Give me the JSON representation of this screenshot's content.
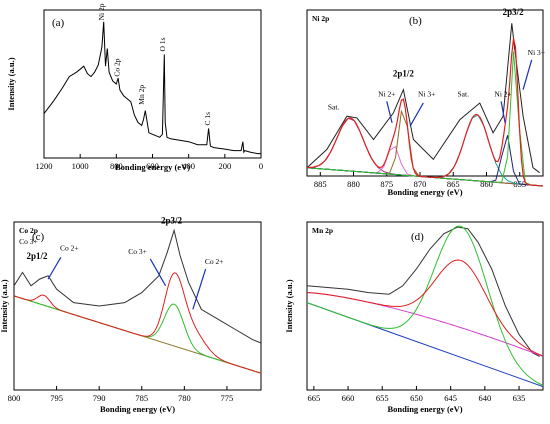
{
  "chart_data": [
    {
      "panel": "(a)",
      "type": "line",
      "xlabel": "Bonding energy (eV)",
      "ylabel": "Intensity (a.u.)",
      "xlim": [
        1200,
        0
      ],
      "xticks": [
        1200,
        1000,
        800,
        600,
        400,
        200,
        0
      ],
      "series": [
        {
          "x": [
            1200,
            1150,
            1100,
            1060,
            1020,
            1000,
            980,
            960,
            940,
            920,
            900,
            880,
            870,
            860,
            855,
            850,
            840,
            820,
            800,
            790,
            780,
            760,
            740,
            720,
            700,
            680,
            660,
            650,
            640,
            620,
            600,
            560,
            545,
            535,
            530,
            520,
            500,
            450,
            400,
            350,
            300,
            290,
            285,
            280,
            260,
            200,
            150,
            110,
            100,
            95,
            90,
            60,
            20,
            0
          ],
          "y": [
            0.3,
            0.38,
            0.47,
            0.55,
            0.58,
            0.6,
            0.62,
            0.57,
            0.55,
            0.58,
            0.63,
            0.75,
            0.92,
            0.62,
            0.68,
            0.74,
            0.58,
            0.52,
            0.5,
            0.54,
            0.46,
            0.42,
            0.4,
            0.38,
            0.29,
            0.24,
            0.22,
            0.26,
            0.32,
            0.17,
            0.16,
            0.14,
            0.16,
            0.7,
            0.24,
            0.14,
            0.13,
            0.12,
            0.11,
            0.09,
            0.09,
            0.2,
            0.14,
            0.08,
            0.07,
            0.06,
            0.05,
            0.05,
            0.11,
            0.04,
            0.05,
            0.04,
            0.03,
            0.03
          ]
        }
      ],
      "annotations": [
        "Ni 2p",
        "Co 2p",
        "Mn 2p",
        "O 1s",
        "C 1s"
      ]
    },
    {
      "panel": "(b)",
      "type": "line",
      "corner_label": "Ni 2p",
      "xlabel": "Bonding energy (eV)",
      "ylabel": "",
      "xlim": [
        887,
        851.5
      ],
      "xticks": [
        885,
        880,
        875,
        870,
        865,
        860,
        855
      ],
      "series": [
        {
          "x": [
            887,
            884,
            881,
            879.5,
            877,
            874,
            872.5,
            871,
            868,
            864,
            861,
            859,
            857.5,
            856.2,
            855.8,
            854.5,
            853,
            852
          ],
          "y": [
            0.05,
            0.16,
            0.36,
            0.35,
            0.22,
            0.38,
            0.52,
            0.22,
            0.1,
            0.34,
            0.44,
            0.26,
            0.36,
            0.92,
            0.78,
            0.36,
            0.05,
            0.02
          ]
        },
        {
          "x": [
            887,
            851.5
          ],
          "y": [
            0.05,
            -0.06
          ]
        }
      ],
      "annotations": [
        "Sat.",
        "Ni 2+",
        "2p1/2",
        "Ni 3+",
        "Sat.",
        "Ni 2+",
        "2p3/2",
        "Ni 3+"
      ]
    },
    {
      "panel": "(c)",
      "type": "line",
      "corner_label": "Co 2p",
      "xlabel": "Bonding energy (eV)",
      "ylabel": "Intensity (a.u.)",
      "xlim": [
        800,
        771
      ],
      "xticks": [
        800,
        795,
        790,
        785,
        780,
        775
      ],
      "series": [
        {
          "x": [
            800,
            799,
            798,
            797,
            796,
            795,
            793,
            790,
            787,
            785,
            783,
            782,
            781.2,
            780.5,
            779.5,
            778,
            776,
            774,
            772,
            771
          ],
          "y": [
            0.62,
            0.7,
            0.62,
            0.66,
            0.68,
            0.6,
            0.52,
            0.5,
            0.52,
            0.58,
            0.68,
            0.82,
            0.95,
            0.8,
            0.64,
            0.48,
            0.42,
            0.36,
            0.3,
            0.28
          ]
        },
        {
          "x": [
            800,
            771
          ],
          "y": [
            0.56,
            0.1
          ]
        }
      ],
      "annotations": [
        "Co 3+",
        "2p1/2",
        "Co 2+",
        "2p3/2",
        "Co 3+",
        "Co 2+"
      ]
    },
    {
      "panel": "(d)",
      "type": "line",
      "corner_label": "Mn 2p",
      "xlabel": "Bonding energy (eV)",
      "ylabel": "Intensity (a.u.)",
      "xlim": [
        666,
        631.5
      ],
      "xticks": [
        665,
        660,
        655,
        650,
        645,
        640,
        635
      ],
      "series": [
        {
          "x": [
            666,
            663,
            660,
            657,
            654,
            652,
            650,
            648,
            646,
            644,
            642.5,
            641,
            639,
            637,
            635,
            633,
            632
          ],
          "y": [
            0.62,
            0.61,
            0.6,
            0.58,
            0.57,
            0.62,
            0.72,
            0.84,
            0.93,
            0.97,
            0.96,
            0.88,
            0.72,
            0.5,
            0.33,
            0.22,
            0.2
          ]
        },
        {
          "x": [
            666,
            631.5
          ],
          "y": [
            0.52,
            0.02
          ]
        }
      ]
    }
  ]
}
